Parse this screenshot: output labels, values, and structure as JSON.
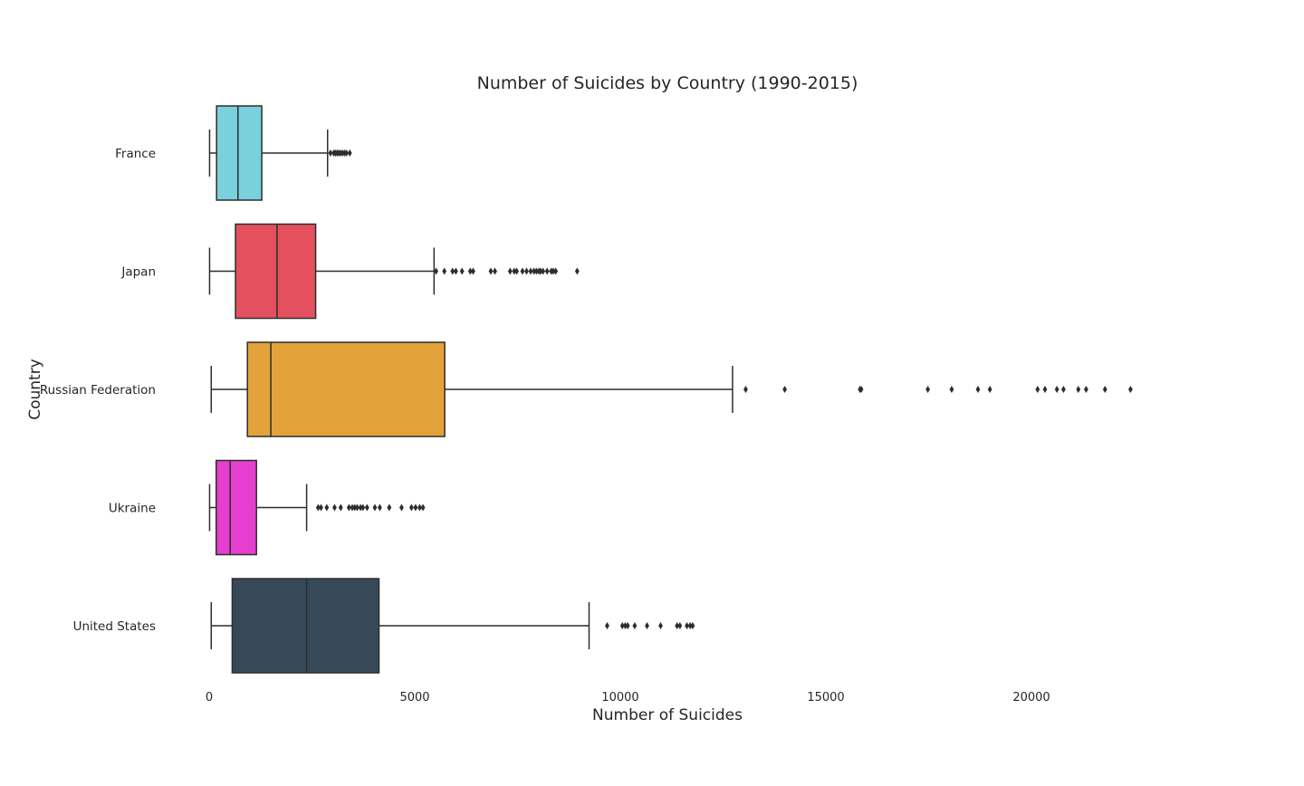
{
  "chart_data": {
    "type": "box",
    "title": "Number of Suicides by Country (1990-2015)",
    "xlabel": "Number of Suicides",
    "ylabel": "Country",
    "xlim": [
      -150,
      23500
    ],
    "xticks": [
      0,
      5000,
      10000,
      15000,
      20000
    ],
    "grid": false,
    "orientation": "horizontal",
    "series": [
      {
        "name": "France",
        "color": "#7ad0dc",
        "whisker_low": 10,
        "q1": 180,
        "median": 700,
        "q3": 1280,
        "whisker_high": 2880,
        "outliers": [
          2950,
          3030,
          3070,
          3110,
          3150,
          3190,
          3240,
          3290,
          3340,
          3420
        ]
      },
      {
        "name": "Japan",
        "color": "#e5505e",
        "whisker_low": 10,
        "q1": 640,
        "median": 1650,
        "q3": 2590,
        "whisker_high": 5470,
        "outliers": [
          5520,
          5720,
          5920,
          6000,
          6150,
          6350,
          6420,
          6850,
          6950,
          7320,
          7420,
          7480,
          7620,
          7720,
          7820,
          7900,
          7960,
          8020,
          8060,
          8120,
          8220,
          8320,
          8370,
          8430,
          8950
        ]
      },
      {
        "name": "Russian Federation",
        "color": "#e3a33a",
        "whisker_low": 50,
        "q1": 930,
        "median": 1500,
        "q3": 5730,
        "whisker_high": 12730,
        "outliers": [
          13050,
          14000,
          15830,
          15860,
          17480,
          18060,
          18700,
          18990,
          20150,
          20330,
          20620,
          20780,
          21140,
          21330,
          21790,
          22410
        ]
      },
      {
        "name": "Ukraine",
        "color": "#e43fce",
        "whisker_low": 10,
        "q1": 170,
        "median": 510,
        "q3": 1150,
        "whisker_high": 2370,
        "outliers": [
          2650,
          2720,
          2860,
          3050,
          3200,
          3400,
          3480,
          3540,
          3600,
          3680,
          3740,
          3840,
          4030,
          4150,
          4380,
          4680,
          4920,
          5020,
          5120,
          5200
        ]
      },
      {
        "name": "United States",
        "color": "#374859",
        "whisker_low": 50,
        "q1": 560,
        "median": 2370,
        "q3": 4130,
        "whisker_high": 9240,
        "outliers": [
          9680,
          10050,
          10120,
          10180,
          10350,
          10650,
          10980,
          11380,
          11450,
          11620,
          11700,
          11760
        ]
      }
    ]
  },
  "style": {
    "line_color": "#2d2d2d",
    "text_color": "#262626"
  }
}
